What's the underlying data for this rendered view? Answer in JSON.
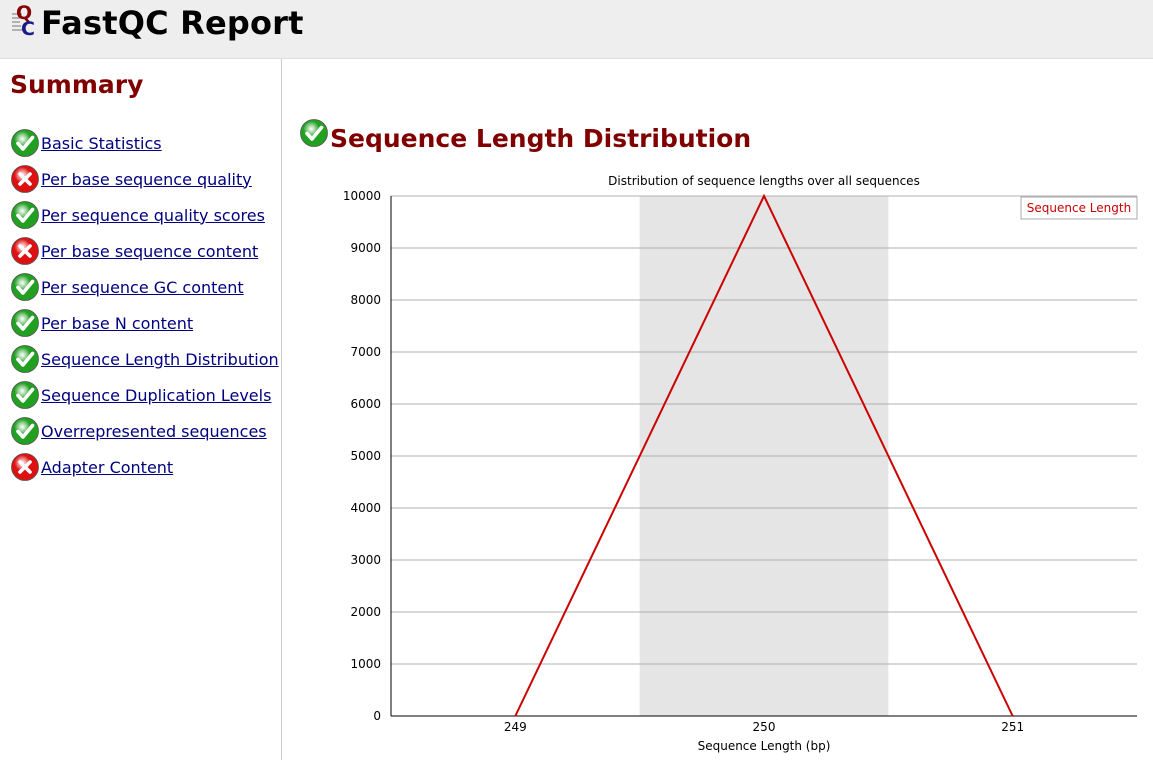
{
  "app": {
    "title": "FastQC Report"
  },
  "sidebar": {
    "title": "Summary",
    "modules": [
      {
        "label": "Basic Statistics",
        "status": "pass",
        "icon": "tick-icon"
      },
      {
        "label": "Per base sequence quality",
        "status": "fail",
        "icon": "cross-icon"
      },
      {
        "label": "Per sequence quality scores",
        "status": "pass",
        "icon": "tick-icon"
      },
      {
        "label": "Per base sequence content",
        "status": "fail",
        "icon": "cross-icon"
      },
      {
        "label": "Per sequence GC content",
        "status": "pass",
        "icon": "tick-icon"
      },
      {
        "label": "Per base N content",
        "status": "pass",
        "icon": "tick-icon"
      },
      {
        "label": "Sequence Length Distribution",
        "status": "pass",
        "icon": "tick-icon"
      },
      {
        "label": "Sequence Duplication Levels",
        "status": "pass",
        "icon": "tick-icon"
      },
      {
        "label": "Overrepresented sequences",
        "status": "pass",
        "icon": "tick-icon"
      },
      {
        "label": "Adapter Content",
        "status": "fail",
        "icon": "cross-icon"
      }
    ]
  },
  "main": {
    "section_title": "Sequence Length Distribution",
    "section_status": "pass"
  },
  "colors": {
    "header_bg": "#eeeeee",
    "heading": "#800000",
    "link": "#000080",
    "series_line": "#cc0000",
    "band": "#e5e5e5",
    "gridline": "#b0b0b0",
    "pass": "#22a022",
    "fail": "#dd1111"
  },
  "chart_data": {
    "type": "line",
    "title": "Distribution of sequence lengths over all sequences",
    "xlabel": "Sequence Length (bp)",
    "ylabel": "",
    "categories": [
      "249",
      "250",
      "251"
    ],
    "series": [
      {
        "name": "Sequence Length",
        "values": [
          0,
          10000,
          0
        ]
      }
    ],
    "ylim": [
      0,
      10000
    ],
    "yticks": [
      0,
      1000,
      2000,
      3000,
      4000,
      5000,
      6000,
      7000,
      8000,
      9000,
      10000
    ],
    "grid": true,
    "alternating_bands": true,
    "legend_position": "top-right"
  }
}
